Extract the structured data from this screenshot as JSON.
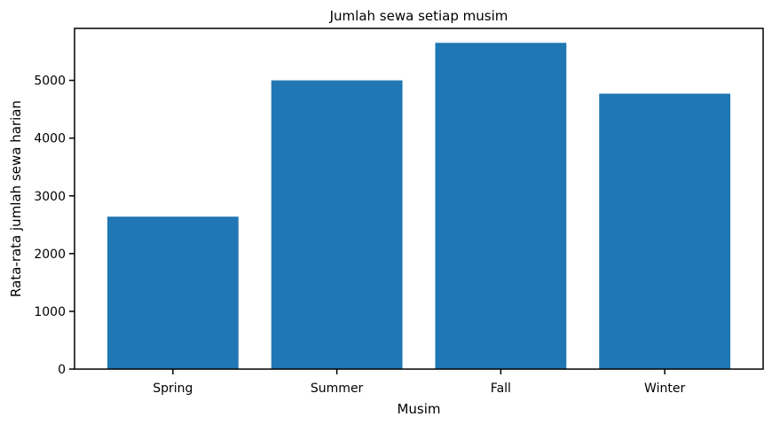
{
  "chart_data": {
    "type": "bar",
    "title": "Jumlah sewa setiap musim",
    "xlabel": "Musim",
    "ylabel": "Rata-rata jumlah sewa harian",
    "categories": [
      "Spring",
      "Summer",
      "Fall",
      "Winter"
    ],
    "values": [
      2640,
      5000,
      5650,
      4770
    ],
    "ylim": [
      0,
      5900
    ],
    "yticks": [
      0,
      1000,
      2000,
      3000,
      4000,
      5000
    ],
    "ytick_labels": [
      "0",
      "1000",
      "2000",
      "3000",
      "4000",
      "5000"
    ],
    "grid": false,
    "legend": "none",
    "colors": {
      "bar": "#2077b4",
      "axis": "#000000",
      "background": "#ffffff"
    }
  }
}
